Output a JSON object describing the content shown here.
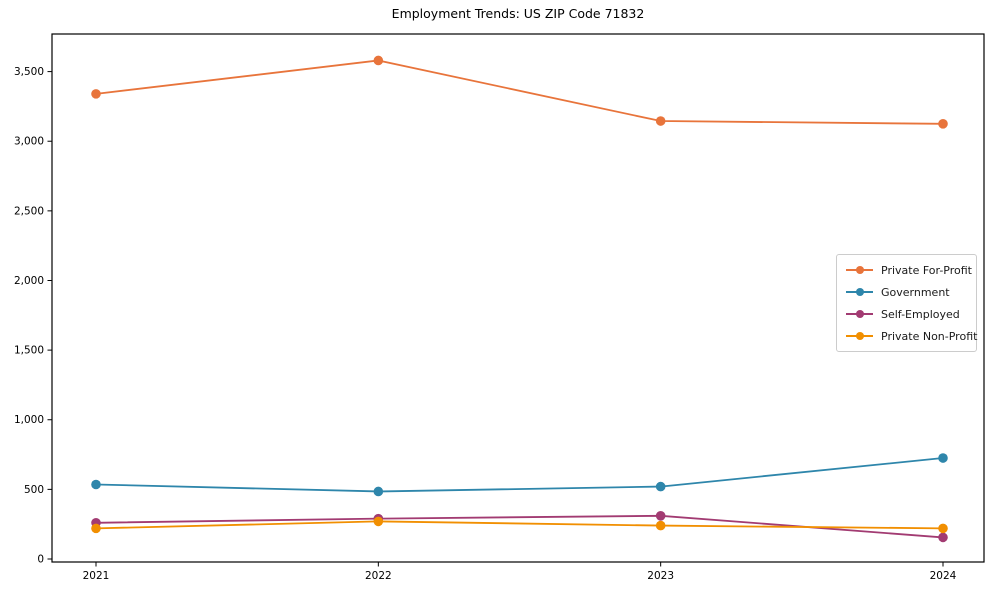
{
  "chart_data": {
    "type": "line",
    "title": "Employment Trends: US ZIP Code 71832",
    "categories": [
      "2021",
      "2022",
      "2023",
      "2024"
    ],
    "series": [
      {
        "name": "Private For-Profit",
        "color": "#E8743B",
        "values": [
          3340,
          3580,
          3145,
          3125
        ]
      },
      {
        "name": "Government",
        "color": "#2E86AB",
        "values": [
          535,
          485,
          520,
          725
        ]
      },
      {
        "name": "Self-Employed",
        "color": "#A23B72",
        "values": [
          260,
          290,
          310,
          155
        ]
      },
      {
        "name": "Private Non-Profit",
        "color": "#F18F01",
        "values": [
          220,
          270,
          240,
          220
        ]
      }
    ],
    "xlabel": "",
    "ylabel": "",
    "ylim": [
      0,
      3770
    ],
    "yticks": [
      0,
      500,
      1000,
      1500,
      2000,
      2500,
      3000,
      3500
    ],
    "grid": false,
    "legend_position": "center right",
    "marker": "circle",
    "axis_color": "#000000",
    "tick_label_color": "#000000"
  }
}
